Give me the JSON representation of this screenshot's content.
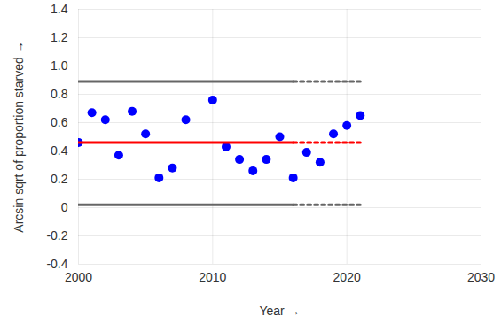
{
  "chart_data": {
    "type": "scatter",
    "x_label": "Year",
    "y_label": "Arcsin sqrt of proportion starved",
    "xlim": [
      2000,
      2030
    ],
    "xticks": [
      2000,
      2010,
      2020,
      2030
    ],
    "ylim": [
      -0.4,
      1.4
    ],
    "yticks": [
      -0.4,
      -0.2,
      0,
      0.2,
      0.4,
      0.6,
      0.8,
      {
        "value": 1,
        "label": "1.0"
      },
      1.2,
      1.4
    ],
    "grid": true,
    "series": [
      {
        "type": "scatter",
        "color": "#0000ff",
        "marker": "circle",
        "x": [
          2000,
          2001,
          2002,
          2003,
          2004,
          2005,
          2006,
          2007,
          2008,
          2010,
          2011,
          2012,
          2013,
          2014,
          2015,
          2016,
          2017,
          2018,
          2019,
          2020,
          2021
        ],
        "values": [
          0.46,
          0.67,
          0.62,
          0.37,
          0.68,
          0.52,
          0.21,
          0.28,
          0.62,
          0.76,
          0.43,
          0.34,
          0.26,
          0.34,
          0.5,
          0.21,
          0.39,
          0.32,
          0.52,
          0.58,
          0.65
        ]
      },
      {
        "type": "line",
        "color": "#ff0000",
        "line_style": "solid",
        "x": [
          2000,
          2016
        ],
        "values": [
          0.46,
          0.46
        ]
      },
      {
        "type": "line",
        "color": "#ff0000",
        "line_style": "dotted",
        "x": [
          2016,
          2021
        ],
        "values": [
          0.46,
          0.46
        ]
      },
      {
        "type": "line",
        "color": "#666666",
        "line_style": "solid",
        "x": [
          2000,
          2016
        ],
        "values": [
          0.89,
          0.89
        ]
      },
      {
        "type": "line",
        "color": "#666666",
        "line_style": "dotted",
        "x": [
          2016,
          2021
        ],
        "values": [
          0.89,
          0.89
        ]
      },
      {
        "type": "line",
        "color": "#666666",
        "line_style": "solid",
        "x": [
          2000,
          2016
        ],
        "values": [
          0.02,
          0.02
        ]
      },
      {
        "type": "line",
        "color": "#666666",
        "line_style": "dotted",
        "x": [
          2016,
          2021
        ],
        "values": [
          0.02,
          0.02
        ]
      }
    ]
  }
}
